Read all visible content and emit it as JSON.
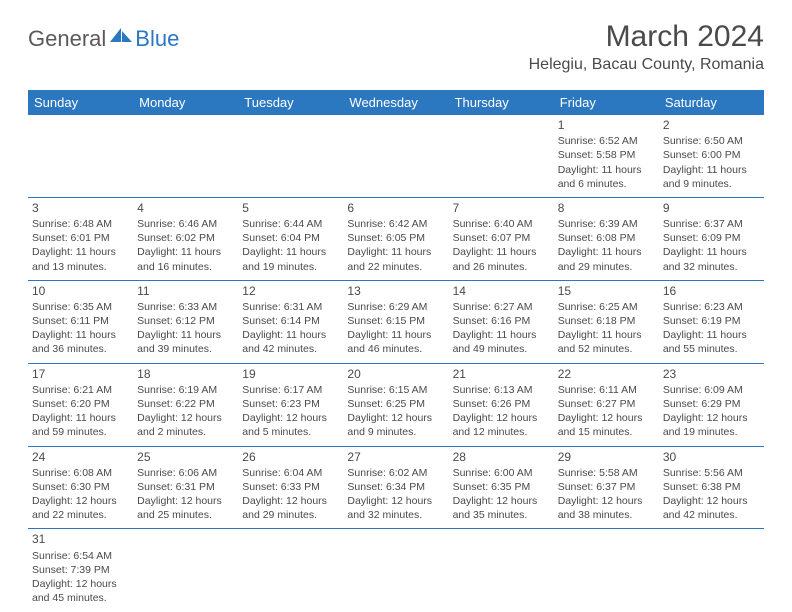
{
  "logo": {
    "text1": "General",
    "text2": "Blue"
  },
  "title": "March 2024",
  "location": "Helegiu, Bacau County, Romania",
  "colors": {
    "header_bg": "#2b77c0",
    "header_text": "#ffffff",
    "border": "#2b77c0",
    "text": "#4a4a4a",
    "background": "#ffffff"
  },
  "weekdays": [
    "Sunday",
    "Monday",
    "Tuesday",
    "Wednesday",
    "Thursday",
    "Friday",
    "Saturday"
  ],
  "weeks": [
    [
      null,
      null,
      null,
      null,
      null,
      {
        "n": "1",
        "sr": "6:52 AM",
        "ss": "5:58 PM",
        "dl": "11 hours and 6 minutes."
      },
      {
        "n": "2",
        "sr": "6:50 AM",
        "ss": "6:00 PM",
        "dl": "11 hours and 9 minutes."
      }
    ],
    [
      {
        "n": "3",
        "sr": "6:48 AM",
        "ss": "6:01 PM",
        "dl": "11 hours and 13 minutes."
      },
      {
        "n": "4",
        "sr": "6:46 AM",
        "ss": "6:02 PM",
        "dl": "11 hours and 16 minutes."
      },
      {
        "n": "5",
        "sr": "6:44 AM",
        "ss": "6:04 PM",
        "dl": "11 hours and 19 minutes."
      },
      {
        "n": "6",
        "sr": "6:42 AM",
        "ss": "6:05 PM",
        "dl": "11 hours and 22 minutes."
      },
      {
        "n": "7",
        "sr": "6:40 AM",
        "ss": "6:07 PM",
        "dl": "11 hours and 26 minutes."
      },
      {
        "n": "8",
        "sr": "6:39 AM",
        "ss": "6:08 PM",
        "dl": "11 hours and 29 minutes."
      },
      {
        "n": "9",
        "sr": "6:37 AM",
        "ss": "6:09 PM",
        "dl": "11 hours and 32 minutes."
      }
    ],
    [
      {
        "n": "10",
        "sr": "6:35 AM",
        "ss": "6:11 PM",
        "dl": "11 hours and 36 minutes."
      },
      {
        "n": "11",
        "sr": "6:33 AM",
        "ss": "6:12 PM",
        "dl": "11 hours and 39 minutes."
      },
      {
        "n": "12",
        "sr": "6:31 AM",
        "ss": "6:14 PM",
        "dl": "11 hours and 42 minutes."
      },
      {
        "n": "13",
        "sr": "6:29 AM",
        "ss": "6:15 PM",
        "dl": "11 hours and 46 minutes."
      },
      {
        "n": "14",
        "sr": "6:27 AM",
        "ss": "6:16 PM",
        "dl": "11 hours and 49 minutes."
      },
      {
        "n": "15",
        "sr": "6:25 AM",
        "ss": "6:18 PM",
        "dl": "11 hours and 52 minutes."
      },
      {
        "n": "16",
        "sr": "6:23 AM",
        "ss": "6:19 PM",
        "dl": "11 hours and 55 minutes."
      }
    ],
    [
      {
        "n": "17",
        "sr": "6:21 AM",
        "ss": "6:20 PM",
        "dl": "11 hours and 59 minutes."
      },
      {
        "n": "18",
        "sr": "6:19 AM",
        "ss": "6:22 PM",
        "dl": "12 hours and 2 minutes."
      },
      {
        "n": "19",
        "sr": "6:17 AM",
        "ss": "6:23 PM",
        "dl": "12 hours and 5 minutes."
      },
      {
        "n": "20",
        "sr": "6:15 AM",
        "ss": "6:25 PM",
        "dl": "12 hours and 9 minutes."
      },
      {
        "n": "21",
        "sr": "6:13 AM",
        "ss": "6:26 PM",
        "dl": "12 hours and 12 minutes."
      },
      {
        "n": "22",
        "sr": "6:11 AM",
        "ss": "6:27 PM",
        "dl": "12 hours and 15 minutes."
      },
      {
        "n": "23",
        "sr": "6:09 AM",
        "ss": "6:29 PM",
        "dl": "12 hours and 19 minutes."
      }
    ],
    [
      {
        "n": "24",
        "sr": "6:08 AM",
        "ss": "6:30 PM",
        "dl": "12 hours and 22 minutes."
      },
      {
        "n": "25",
        "sr": "6:06 AM",
        "ss": "6:31 PM",
        "dl": "12 hours and 25 minutes."
      },
      {
        "n": "26",
        "sr": "6:04 AM",
        "ss": "6:33 PM",
        "dl": "12 hours and 29 minutes."
      },
      {
        "n": "27",
        "sr": "6:02 AM",
        "ss": "6:34 PM",
        "dl": "12 hours and 32 minutes."
      },
      {
        "n": "28",
        "sr": "6:00 AM",
        "ss": "6:35 PM",
        "dl": "12 hours and 35 minutes."
      },
      {
        "n": "29",
        "sr": "5:58 AM",
        "ss": "6:37 PM",
        "dl": "12 hours and 38 minutes."
      },
      {
        "n": "30",
        "sr": "5:56 AM",
        "ss": "6:38 PM",
        "dl": "12 hours and 42 minutes."
      }
    ],
    [
      {
        "n": "31",
        "sr": "6:54 AM",
        "ss": "7:39 PM",
        "dl": "12 hours and 45 minutes."
      },
      null,
      null,
      null,
      null,
      null,
      null
    ]
  ],
  "labels": {
    "sunrise": "Sunrise: ",
    "sunset": "Sunset: ",
    "daylight": "Daylight: "
  }
}
